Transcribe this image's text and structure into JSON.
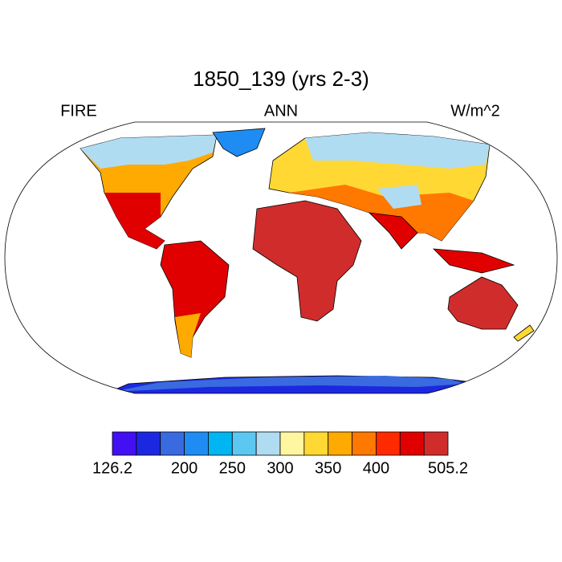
{
  "title": "1850_139 (yrs 2-3)",
  "left_string": "FIRE",
  "center_string": "ANN",
  "right_string": "W/m^2",
  "colorbar": {
    "colors": [
      "#4210f2",
      "#1c28e0",
      "#3a6ae0",
      "#1e8cf2",
      "#00b6f2",
      "#5cc8f2",
      "#b0dcf2",
      "#fff6a0",
      "#ffd834",
      "#ffaa00",
      "#ff7800",
      "#ff2a00",
      "#e00000",
      "#d02c2c"
    ],
    "levels": [
      126.2,
      150,
      175,
      200,
      225,
      250,
      275,
      300,
      325,
      350,
      375,
      400,
      425,
      450,
      505.2
    ],
    "ticks": [
      126.2,
      200,
      250,
      300,
      350,
      400,
      505.2
    ]
  }
}
